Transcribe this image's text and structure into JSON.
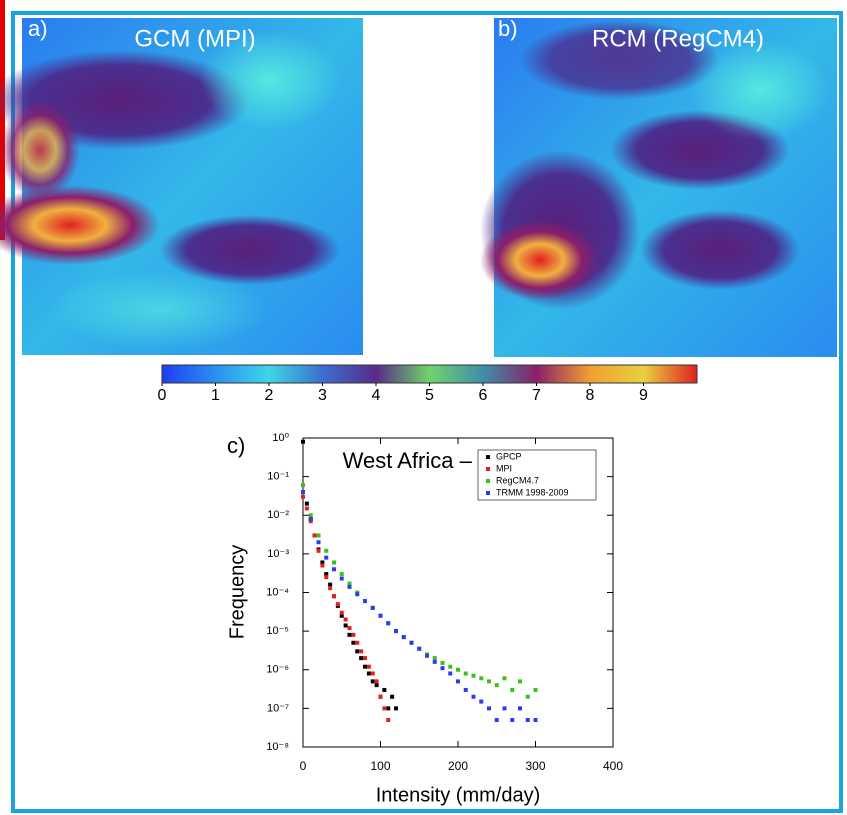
{
  "panels": [
    {
      "letter": "a)",
      "title": "GCM (MPI)"
    },
    {
      "letter": "b)",
      "title": "RCM (RegCM4)"
    }
  ],
  "colorbar": {
    "lim": [
      0,
      10
    ],
    "ticks": [
      0,
      1,
      2,
      3,
      4,
      5,
      6,
      7,
      8,
      9
    ]
  },
  "chart_data": {
    "type": "scatter",
    "panel_letter": "c)",
    "title": "West Africa – Land only",
    "x_label": "Intensity (mm/day)",
    "y_label": "Frequency",
    "log_y": true,
    "legend": "upper-right",
    "xlim": [
      0,
      400
    ],
    "xticks": [
      0,
      100,
      200,
      300,
      400
    ],
    "ylim": [
      1e-08,
      1
    ],
    "yticks": [
      {
        "value": 1,
        "label": "10⁰"
      },
      {
        "value": 0.1,
        "label": "10⁻¹"
      },
      {
        "value": 0.01,
        "label": "10⁻²"
      },
      {
        "value": 0.001,
        "label": "10⁻³"
      },
      {
        "value": 0.0001,
        "label": "10⁻⁴"
      },
      {
        "value": 1e-05,
        "label": "10⁻⁵"
      },
      {
        "value": 1e-06,
        "label": "10⁻⁶"
      },
      {
        "value": 1e-07,
        "label": "10⁻⁷"
      },
      {
        "value": 1e-08,
        "label": "10⁻⁸"
      }
    ],
    "series": [
      {
        "name": "GPCP",
        "color": "#000000",
        "x": [
          0,
          5,
          10,
          15,
          20,
          25,
          30,
          35,
          40,
          45,
          50,
          55,
          60,
          65,
          70,
          75,
          80,
          85,
          90,
          95,
          100,
          105,
          110,
          115,
          120
        ],
        "values": [
          0.8,
          0.02,
          0.008,
          0.003,
          0.0013,
          0.0006,
          0.0003,
          0.00016,
          8e-05,
          4.5e-05,
          2.5e-05,
          1.4e-05,
          8e-06,
          5e-06,
          3e-06,
          2e-06,
          1.2e-06,
          8e-07,
          5e-07,
          4e-07,
          2e-07,
          3e-07,
          1e-07,
          2e-07,
          1e-07
        ]
      },
      {
        "name": "MPI",
        "color": "#e8201c",
        "x": [
          0,
          5,
          10,
          15,
          20,
          25,
          30,
          35,
          40,
          45,
          50,
          55,
          60,
          65,
          70,
          75,
          80,
          85,
          90,
          95,
          100,
          105,
          110
        ],
        "values": [
          0.03,
          0.015,
          0.007,
          0.003,
          0.0012,
          0.0005,
          0.00025,
          0.00013,
          8e-05,
          5e-05,
          3e-05,
          2e-05,
          1.2e-05,
          8e-06,
          5e-06,
          3e-06,
          2e-06,
          1.2e-06,
          8e-07,
          5e-07,
          2e-07,
          1e-07,
          5e-08
        ]
      },
      {
        "name": "RegCM4.7",
        "color": "#3cc01e",
        "x": [
          0,
          10,
          20,
          30,
          40,
          50,
          60,
          70,
          80,
          90,
          100,
          110,
          120,
          130,
          140,
          150,
          160,
          170,
          180,
          190,
          200,
          210,
          220,
          230,
          240,
          250,
          260,
          270,
          280,
          290,
          300
        ],
        "values": [
          0.06,
          0.01,
          0.003,
          0.0012,
          0.0006,
          0.0003,
          0.00017,
          0.0001,
          6e-05,
          4e-05,
          2.5e-05,
          1.6e-05,
          1e-05,
          7e-06,
          5e-06,
          3.5e-06,
          2.5e-06,
          2e-06,
          1.5e-06,
          1.2e-06,
          1e-06,
          8e-07,
          7e-07,
          6e-07,
          5e-07,
          4e-07,
          6e-07,
          3e-07,
          5e-07,
          2e-07,
          3e-07
        ]
      },
      {
        "name": "TRMM 1998-2009",
        "color": "#2a3cf0",
        "x": [
          0,
          10,
          20,
          30,
          40,
          50,
          60,
          70,
          80,
          90,
          100,
          110,
          120,
          130,
          140,
          150,
          160,
          170,
          180,
          190,
          200,
          210,
          220,
          230,
          240,
          250,
          260,
          270,
          280,
          290,
          300
        ],
        "values": [
          0.04,
          0.008,
          0.002,
          0.0008,
          0.0004,
          0.00023,
          0.00014,
          9e-05,
          6e-05,
          4e-05,
          2.5e-05,
          1.6e-05,
          1e-05,
          7e-06,
          5e-06,
          3.5e-06,
          2.3e-06,
          1.6e-06,
          1.1e-06,
          8e-07,
          5e-07,
          3e-07,
          2e-07,
          1.5e-07,
          1e-07,
          5e-08,
          1e-07,
          5e-08,
          1e-07,
          5e-08,
          5e-08
        ]
      }
    ]
  }
}
